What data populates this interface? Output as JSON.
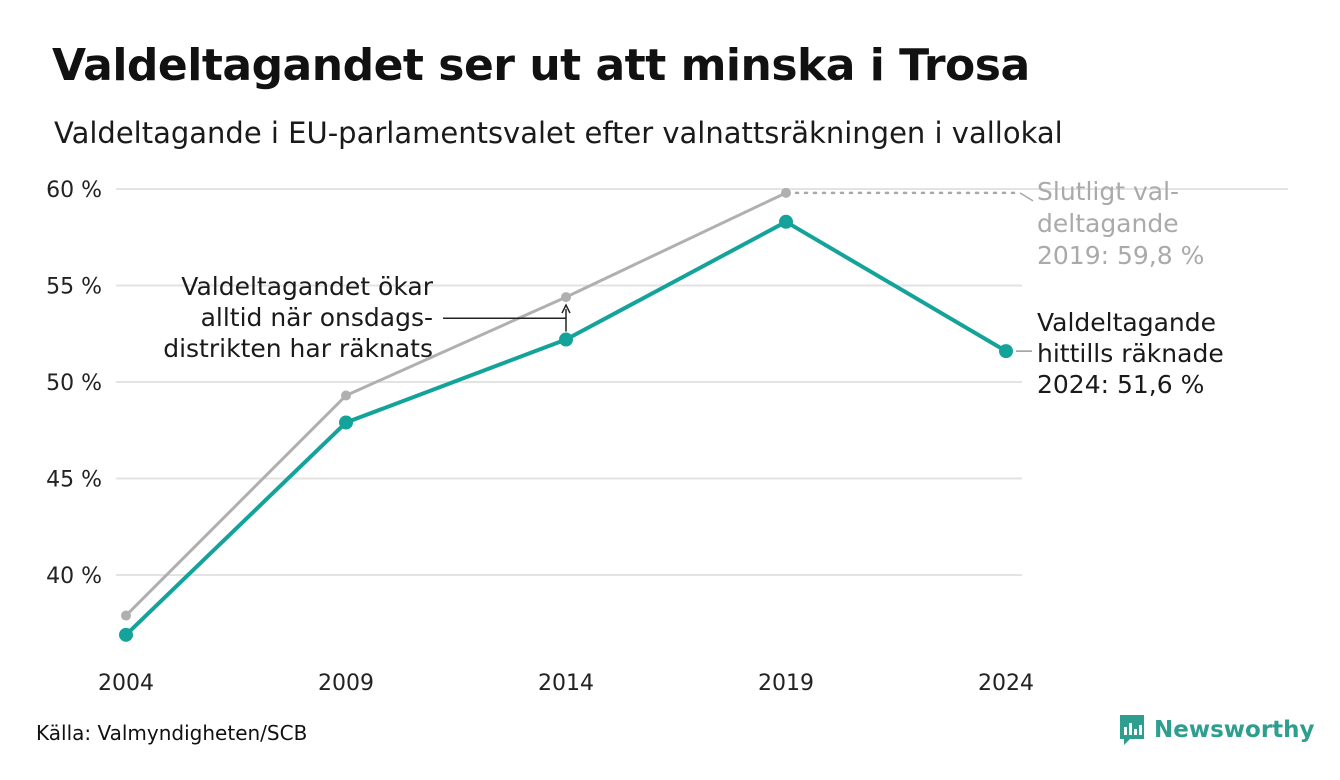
{
  "title": "Valdeltagandet ser ut att minska i Trosa",
  "subtitle": "Valdeltagande i EU-parlamentsvalet efter valnattsräkningen i vallokal",
  "source": "Källa: Valmyndigheten/SCB",
  "brand": {
    "name": "Newsworthy",
    "icon": "newsworthy-logo-icon"
  },
  "colors": {
    "current": "#14a39a",
    "final": "#b0b0b0",
    "grid": "#e3e3e3",
    "text": "#1a1a1a"
  },
  "chart_data": {
    "type": "line",
    "x": [
      2004,
      2009,
      2014,
      2019,
      2024
    ],
    "x_tick_labels": [
      "2004",
      "2009",
      "2014",
      "2019",
      "2024"
    ],
    "y_ticks": [
      40,
      45,
      50,
      55,
      60
    ],
    "y_tick_labels": [
      "40 %",
      "45 %",
      "50 %",
      "55 %",
      "60 %"
    ],
    "ylim": [
      37,
      60
    ],
    "grid": "horizontal",
    "series": [
      {
        "key": "final",
        "values": [
          37.9,
          49.3,
          54.4,
          59.8,
          null
        ],
        "color": "#b0b0b0"
      },
      {
        "key": "current",
        "values": [
          36.9,
          47.9,
          52.2,
          58.3,
          51.6
        ],
        "color": "#14a39a"
      }
    ],
    "annotations": {
      "final_label": [
        "Slutligt val-",
        "deltagande",
        "2019: 59,8 %"
      ],
      "current_label": [
        "Valdeltagande",
        "hittills räknade",
        "2024: 51,6 %"
      ],
      "note": [
        "Valdeltagandet ökar",
        "alltid när onsdags-",
        "distrikten har räknats"
      ]
    }
  }
}
